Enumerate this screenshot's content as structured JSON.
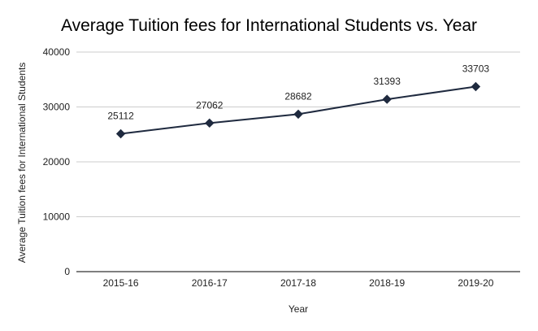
{
  "chart_data": {
    "type": "line",
    "title": "Average Tuition fees for International Students vs. Year",
    "xlabel": "Year",
    "ylabel": "Average Tuition fees for International Students",
    "categories": [
      "2015-16",
      "2016-17",
      "2017-18",
      "2018-19",
      "2019-20"
    ],
    "series": [
      {
        "values": [
          25112,
          27062,
          28682,
          31393,
          33703
        ],
        "color": "#1f2a3f",
        "marker": "diamond"
      }
    ],
    "data_labels": [
      "25112",
      "27062",
      "28682",
      "31393",
      "33703"
    ],
    "ylim": [
      0,
      40000
    ],
    "yticks": [
      0,
      10000,
      20000,
      30000,
      40000
    ],
    "ytick_labels": [
      "0",
      "10000",
      "20000",
      "30000",
      "40000"
    ],
    "grid": true,
    "legend": "none"
  }
}
